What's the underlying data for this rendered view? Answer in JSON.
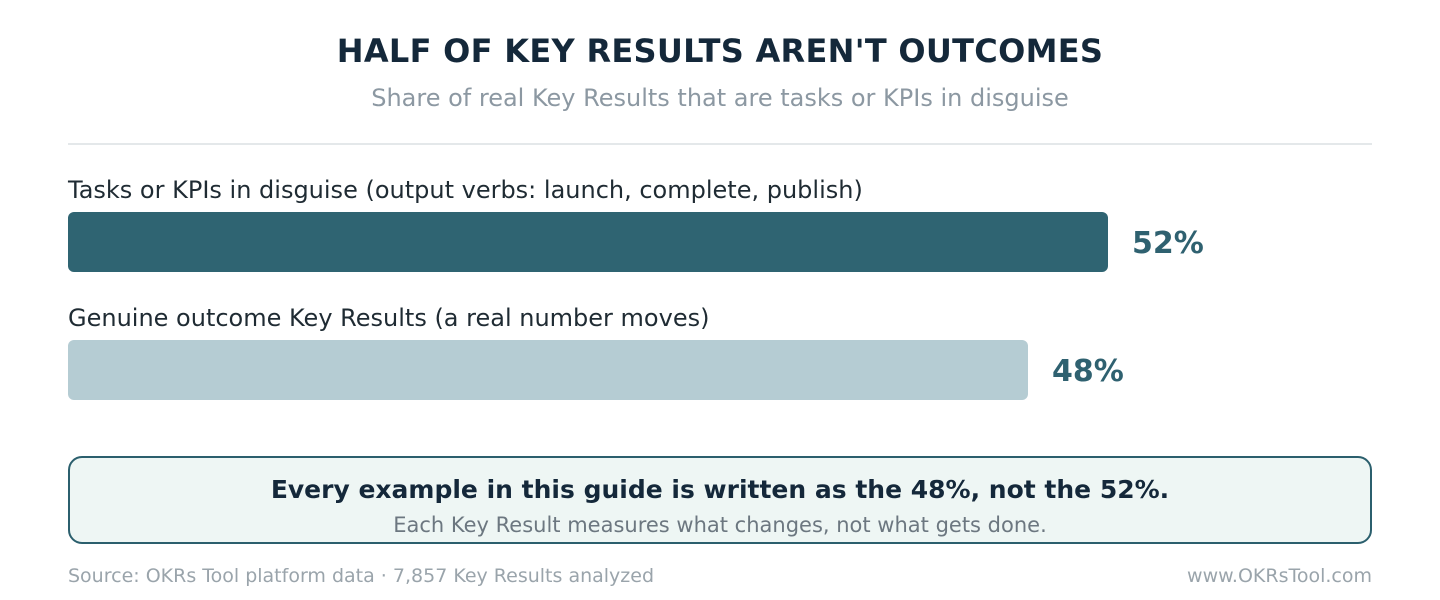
{
  "header": {
    "title": "HALF OF KEY RESULTS AREN'T OUTCOMES",
    "subtitle": "Share of real Key Results that are tasks or KPIs in disguise"
  },
  "chart_data": {
    "type": "bar",
    "orientation": "horizontal",
    "unit": "%",
    "title": "HALF OF KEY RESULTS AREN'T OUTCOMES",
    "subtitle": "Share of real Key Results that are tasks or KPIs in disguise",
    "categories": [
      "Tasks or KPIs in disguise (output verbs: launch, complete, publish)",
      "Genuine outcome Key Results (a real number moves)"
    ],
    "values": [
      52,
      48
    ],
    "value_labels": [
      "52%",
      "48%"
    ],
    "colors": [
      "#2f6472",
      "#b5ccd3"
    ],
    "xlim": [
      0,
      52
    ],
    "grid": false,
    "legend": "none"
  },
  "callout": {
    "headline": "Every example in this guide is written as the 48%, not the 52%.",
    "subline": "Each Key Result measures what changes, not what gets done."
  },
  "footer": {
    "source": "Source: OKRs Tool platform data · 7,857 Key Results analyzed",
    "website": "www.OKRsTool.com"
  }
}
